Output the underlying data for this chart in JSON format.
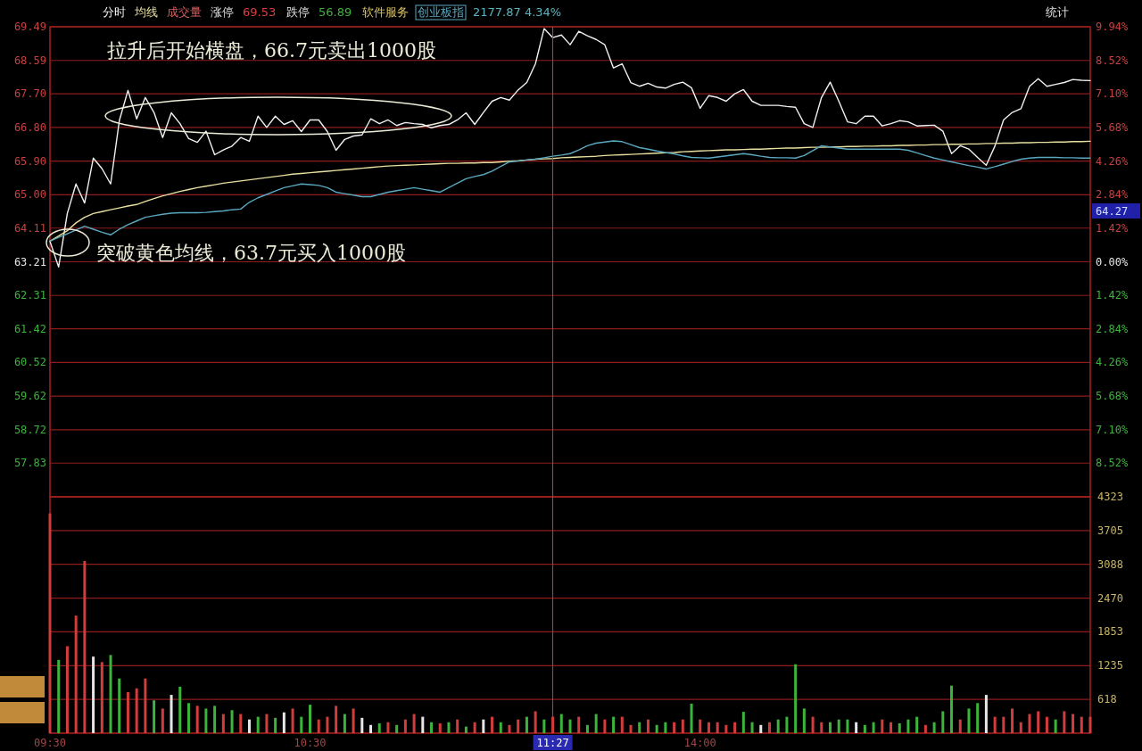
{
  "chart_data": [
    {
      "type": "line",
      "legend": "top",
      "tick_labels": "y",
      "grid": "y",
      "categories": [
        null,
        null,
        null,
        null,
        null,
        null,
        null,
        null,
        null,
        null,
        null,
        null,
        null,
        null,
        null,
        null,
        null,
        null,
        null,
        null,
        null,
        null,
        null,
        null,
        null,
        null,
        null,
        null,
        null,
        null,
        null,
        null,
        null,
        null,
        null,
        null,
        null,
        null,
        null,
        null,
        null,
        null,
        null,
        null,
        null,
        null,
        null,
        null,
        null,
        null,
        null,
        null,
        null,
        null,
        null,
        null,
        null,
        null,
        null,
        null,
        null,
        null,
        null,
        null,
        null,
        null,
        null,
        null,
        null,
        null,
        null,
        null,
        null,
        null,
        null,
        null,
        null,
        null,
        null,
        null,
        null,
        null,
        null,
        null,
        null,
        null,
        null,
        null,
        null,
        null,
        null,
        null,
        null,
        null,
        null,
        null,
        null,
        null,
        null,
        null,
        null,
        null,
        null,
        null,
        null,
        null,
        null,
        null,
        null,
        null,
        null,
        null,
        null,
        null,
        null,
        null,
        null,
        null,
        null,
        null,
        null
      ],
      "ylim": [
        56.93,
        69.49
      ],
      "y2lim": [
        -9.94,
        9.94
      ],
      "yticks": [
        69.49,
        68.59,
        {
          "value": 67.7,
          "label": "67.70"
        },
        {
          "value": 66.8,
          "label": "66.80"
        },
        {
          "value": 65.9,
          "label": "65.90"
        },
        {
          "value": 65.0,
          "label": "65.00"
        },
        64.11,
        63.21,
        62.31,
        61.42,
        60.52,
        59.62,
        58.72,
        57.83
      ],
      "y2ticks": [
        {
          "value": 9.94,
          "label": "9.94%"
        },
        {
          "value": 8.52,
          "label": "8.52%"
        },
        {
          "value": 7.1,
          "label": "7.10%"
        },
        {
          "value": 5.68,
          "label": "5.68%"
        },
        {
          "value": 4.26,
          "label": "4.26%"
        },
        {
          "value": 2.84,
          "label": "2.84%"
        },
        {
          "value": 1.42,
          "label": "1.42%"
        },
        {
          "value": 0,
          "label": "0.00%"
        },
        {
          "value": -1.42,
          "label": "1.42%"
        },
        {
          "value": -2.84,
          "label": "2.84%"
        },
        {
          "value": -4.26,
          "label": "4.26%"
        },
        {
          "value": -5.68,
          "label": "5.68%"
        },
        {
          "value": -7.1,
          "label": "7.10%"
        },
        {
          "value": -8.52,
          "label": "8.52%"
        }
      ],
      "series": [
        {
          "name": "分时",
          "color": "#f0f0f0",
          "values": [
            63.76,
            63.07,
            64.5,
            65.29,
            64.78,
            65.98,
            65.7,
            65.29,
            66.98,
            67.79,
            67.03,
            67.6,
            67.2,
            66.53,
            67.19,
            66.9,
            66.5,
            66.4,
            66.7,
            66.07,
            66.2,
            66.3,
            66.53,
            66.43,
            67.1,
            66.8,
            67.1,
            66.88,
            66.98,
            66.69,
            67.0,
            67.0,
            66.69,
            66.19,
            66.48,
            66.57,
            66.6,
            67.03,
            66.9,
            67.0,
            66.85,
            66.93,
            66.9,
            66.88,
            66.79,
            66.85,
            66.88,
            67.0,
            67.19,
            66.88,
            67.2,
            67.5,
            67.6,
            67.53,
            67.8,
            68.0,
            68.5,
            69.44,
            69.2,
            69.27,
            69.01,
            69.37,
            69.25,
            69.15,
            69.01,
            68.39,
            68.5,
            68.0,
            67.9,
            67.98,
            67.88,
            67.85,
            67.95,
            68.01,
            67.86,
            67.31,
            67.65,
            67.6,
            67.5,
            67.7,
            67.81,
            67.5,
            67.39,
            67.39,
            67.39,
            67.36,
            67.34,
            66.9,
            66.8,
            67.6,
            68.01,
            67.5,
            66.95,
            66.9,
            67.1,
            67.1,
            66.84,
            66.9,
            66.98,
            66.95,
            66.84,
            66.85,
            66.86,
            66.7,
            66.1,
            66.31,
            66.22,
            66.0,
            65.79,
            66.3,
            67.0,
            67.2,
            67.3,
            67.9,
            68.1,
            67.9,
            67.95,
            68.0,
            68.08,
            68.06,
            68.05
          ]
        },
        {
          "name": "均线",
          "color": "#e8e0a0",
          "values": [
            63.76,
            63.9,
            64.04,
            64.25,
            64.4,
            64.5,
            64.55,
            64.6,
            64.65,
            64.7,
            64.74,
            64.82,
            64.9,
            64.97,
            65.03,
            65.09,
            65.14,
            65.19,
            65.23,
            65.27,
            65.31,
            65.34,
            65.37,
            65.4,
            65.43,
            65.46,
            65.49,
            65.52,
            65.55,
            65.57,
            65.59,
            65.61,
            65.63,
            65.65,
            65.67,
            65.69,
            65.71,
            65.73,
            65.75,
            65.77,
            65.78,
            65.79,
            65.8,
            65.81,
            65.82,
            65.83,
            65.84,
            65.84,
            65.85,
            65.85,
            65.86,
            65.86,
            65.88,
            65.9,
            65.91,
            65.93,
            65.95,
            65.96,
            65.97,
            65.99,
            66.0,
            66.01,
            66.02,
            66.03,
            66.05,
            66.06,
            66.07,
            66.08,
            66.09,
            66.1,
            66.11,
            66.12,
            66.13,
            66.15,
            66.16,
            66.17,
            66.18,
            66.19,
            66.2,
            66.2,
            66.21,
            66.22,
            66.22,
            66.23,
            66.24,
            66.25,
            66.25,
            66.26,
            66.27,
            66.27,
            66.28,
            66.28,
            66.29,
            66.29,
            66.3,
            66.3,
            66.31,
            66.31,
            66.32,
            66.32,
            66.33,
            66.33,
            66.34,
            66.34,
            66.35,
            66.35,
            66.36,
            66.36,
            66.37,
            66.37,
            66.38,
            66.38,
            66.39,
            66.39,
            66.4,
            66.4,
            66.41,
            66.41,
            66.42,
            66.42,
            66.43
          ]
        },
        {
          "name": "创业板指",
          "color": "#5aa8c0",
          "values": [
            63.76,
            63.86,
            63.96,
            64.06,
            64.16,
            64.08,
            64.0,
            63.93,
            64.08,
            64.2,
            64.3,
            64.4,
            64.44,
            64.48,
            64.51,
            64.52,
            64.52,
            64.52,
            64.53,
            64.55,
            64.57,
            64.6,
            64.62,
            64.8,
            64.92,
            65.01,
            65.1,
            65.19,
            65.24,
            65.29,
            65.27,
            65.25,
            65.19,
            65.07,
            65.03,
            64.99,
            64.95,
            64.95,
            65.01,
            65.07,
            65.11,
            65.15,
            65.19,
            65.15,
            65.11,
            65.07,
            65.19,
            65.31,
            65.43,
            65.49,
            65.54,
            65.63,
            65.76,
            65.88,
            65.9,
            65.93,
            65.95,
            65.99,
            66.03,
            66.06,
            66.1,
            66.2,
            66.31,
            66.38,
            66.41,
            66.44,
            66.42,
            66.34,
            66.26,
            66.22,
            66.17,
            66.13,
            66.09,
            66.04,
            66.0,
            65.99,
            65.98,
            66.01,
            66.04,
            66.07,
            66.1,
            66.07,
            66.03,
            66.0,
            65.99,
            65.99,
            65.98,
            66.05,
            66.18,
            66.31,
            66.28,
            66.25,
            66.22,
            66.22,
            66.22,
            66.22,
            66.22,
            66.22,
            66.22,
            66.19,
            66.12,
            66.05,
            65.98,
            65.93,
            65.88,
            65.83,
            65.78,
            65.74,
            65.69,
            65.75,
            65.82,
            65.89,
            65.95,
            65.98,
            66.0,
            66.0,
            66.0,
            65.99,
            65.99,
            65.98,
            65.98
          ]
        }
      ],
      "annotations": [
        "成交量",
        "涨停",
        "69.53",
        "跌停",
        "56.89",
        "软件服务",
        "2177.87 4.34%",
        "统计",
        "拉升后开始横盘，66.7元卖出1000股",
        "突破黄色均线，63.7元买入1000股",
        "64.27"
      ]
    },
    {
      "type": "bar",
      "grid": "y",
      "ylim": [
        0,
        4323
      ],
      "categories": [
        "09:30",
        null,
        null,
        null,
        null,
        null,
        null,
        null,
        null,
        null,
        null,
        null,
        null,
        null,
        null,
        null,
        null,
        null,
        null,
        null,
        null,
        null,
        null,
        null,
        null,
        null,
        null,
        null,
        null,
        null,
        "10:30",
        null,
        null,
        null,
        null,
        null,
        null,
        null,
        null,
        null,
        null,
        null,
        null,
        null,
        null,
        null,
        null,
        null,
        null,
        null,
        null,
        null,
        null,
        null,
        null,
        null,
        null,
        null,
        "11:27",
        null,
        null,
        null,
        null,
        null,
        null,
        null,
        null,
        null,
        null,
        null,
        null,
        null,
        null,
        null,
        null,
        "14:00",
        null,
        null,
        null,
        null,
        null,
        null,
        null,
        null,
        null,
        null,
        null,
        null,
        null,
        null,
        null,
        null,
        null,
        null,
        null,
        null,
        null,
        null,
        null,
        null,
        null,
        null,
        null,
        null,
        null,
        null,
        null,
        null,
        null,
        null,
        null,
        null,
        null,
        null,
        null,
        null,
        null,
        null,
        null,
        null,
        null
      ],
      "yticks": [
        618,
        1235,
        1853,
        2470,
        3088,
        3705,
        4323
      ],
      "ref_lines": [
        {
          "axis": "x",
          "value": "11:27"
        }
      ],
      "values": [
        4020,
        1340,
        1590,
        2150,
        3150,
        1400,
        1300,
        1430,
        1000,
        750,
        820,
        1000,
        600,
        450,
        700,
        850,
        550,
        500,
        450,
        500,
        350,
        420,
        350,
        250,
        300,
        350,
        280,
        380,
        450,
        300,
        520,
        250,
        300,
        500,
        350,
        450,
        280,
        150,
        180,
        200,
        150,
        250,
        350,
        300,
        200,
        180,
        200,
        250,
        120,
        200,
        250,
        300,
        200,
        150,
        250,
        300,
        400,
        250,
        300,
        350,
        250,
        300,
        150,
        350,
        250,
        300,
        300,
        150,
        200,
        250,
        150,
        200,
        200,
        250,
        540,
        250,
        200,
        200,
        150,
        200,
        390,
        200,
        150,
        200,
        250,
        300,
        1260,
        450,
        300,
        200,
        200,
        250,
        250,
        200,
        150,
        200,
        250,
        200,
        180,
        250,
        300,
        150,
        200,
        400,
        870,
        250,
        450,
        550,
        700,
        300,
        300,
        450,
        200,
        350,
        400,
        300,
        250,
        400,
        350,
        300,
        300
      ],
      "colors": [
        "#d23c3c",
        "#3cb43c",
        "#d23c3c",
        "#d23c3c",
        "#d23c3c",
        "#e6e6e6",
        "#d23c3c",
        "#3cb43c",
        "#3cb43c",
        "#d23c3c",
        "#d23c3c",
        "#d23c3c",
        "#3cb43c",
        "#d23c3c",
        "#e6e6e6",
        "#3cb43c",
        "#3cb43c",
        "#d23c3c",
        "#3cb43c",
        "#3cb43c",
        "#d23c3c",
        "#3cb43c",
        "#d23c3c",
        "#e6e6e6",
        "#3cb43c",
        "#d23c3c",
        "#3cb43c",
        "#e6e6e6",
        "#d23c3c",
        "#3cb43c",
        "#3cb43c",
        "#d23c3c",
        "#d23c3c",
        "#d23c3c",
        "#3cb43c",
        "#d23c3c",
        "#e6e6e6",
        "#e6e6e6",
        "#3cb43c",
        "#d23c3c",
        "#3cb43c",
        "#d23c3c",
        "#d23c3c",
        "#e6e6e6",
        "#3cb43c",
        "#d23c3c",
        "#3cb43c",
        "#d23c3c",
        "#3cb43c",
        "#d23c3c",
        "#e6e6e6",
        "#d23c3c",
        "#3cb43c",
        "#d23c3c",
        "#d23c3c",
        "#3cb43c",
        "#d23c3c",
        "#3cb43c",
        "#d23c3c",
        "#3cb43c",
        "#3cb43c",
        "#d23c3c",
        "#3cb43c",
        "#3cb43c",
        "#d23c3c",
        "#3cb43c",
        "#d23c3c",
        "#d23c3c",
        "#3cb43c",
        "#d23c3c",
        "#3cb43c",
        "#3cb43c",
        "#d23c3c",
        "#d23c3c",
        "#3cb43c",
        "#d23c3c",
        "#d23c3c",
        "#d23c3c",
        "#d23c3c",
        "#d23c3c",
        "#3cb43c",
        "#3cb43c",
        "#e6e6e6",
        "#d23c3c",
        "#3cb43c",
        "#3cb43c",
        "#3cb43c",
        "#3cb43c",
        "#d23c3c",
        "#d23c3c",
        "#3cb43c",
        "#3cb43c",
        "#3cb43c",
        "#e6e6e6",
        "#3cb43c",
        "#3cb43c",
        "#d23c3c",
        "#d23c3c",
        "#3cb43c",
        "#3cb43c",
        "#3cb43c",
        "#d23c3c",
        "#3cb43c",
        "#3cb43c",
        "#3cb43c",
        "#d23c3c",
        "#3cb43c",
        "#3cb43c",
        "#e6e6e6",
        "#d23c3c",
        "#d23c3c",
        "#d23c3c",
        "#d23c3c",
        "#d23c3c",
        "#d23c3c",
        "#d23c3c",
        "#3cb43c",
        "#d23c3c",
        "#d23c3c",
        "#d23c3c",
        "#d23c3c"
      ]
    }
  ]
}
